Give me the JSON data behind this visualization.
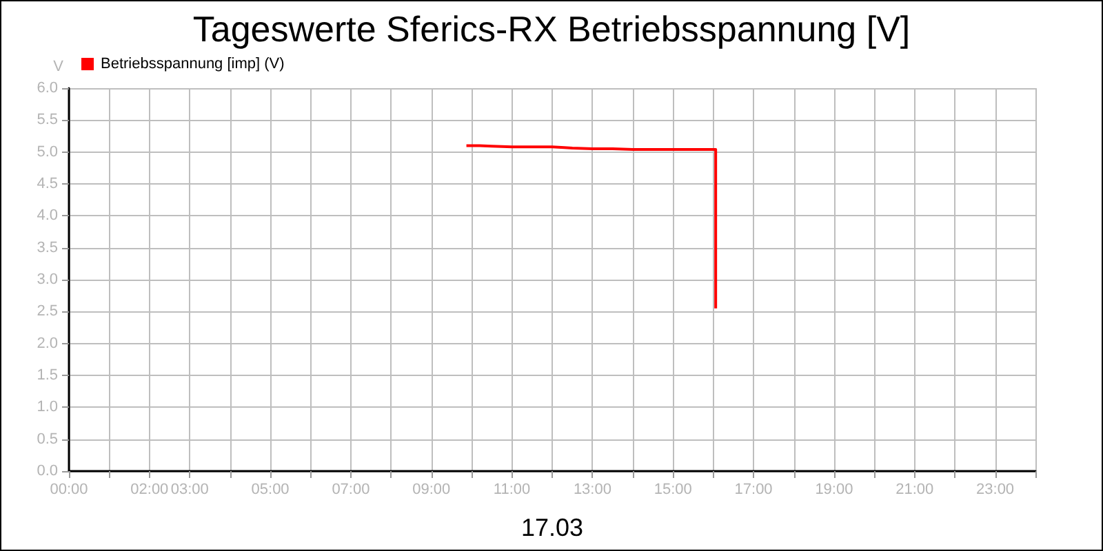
{
  "chart_data": {
    "type": "line",
    "title": "Tageswerte Sferics-RX Betriebsspannung [V]",
    "ylabel": "V",
    "xlabel": "17.03",
    "x": [
      9.87,
      10.2,
      10.5,
      11.0,
      11.5,
      12.0,
      12.3,
      12.5,
      13.0,
      13.5,
      14.0,
      14.5,
      15.0,
      15.5,
      16.0,
      16.06,
      16.06
    ],
    "series": [
      {
        "name": "Betriebsspannung [imp] (V)",
        "color": "#ff0000",
        "values": [
          5.1,
          5.1,
          5.09,
          5.08,
          5.08,
          5.08,
          5.07,
          5.06,
          5.05,
          5.05,
          5.04,
          5.04,
          5.04,
          5.04,
          5.04,
          5.04,
          2.55
        ]
      }
    ],
    "xlim": [
      0,
      24
    ],
    "xticks": [
      {
        "value": 0,
        "label": "00:00"
      },
      {
        "value": 1,
        "label": null
      },
      {
        "value": 2,
        "label": "02:00"
      },
      {
        "value": 3,
        "label": "03:00"
      },
      {
        "value": 4,
        "label": null
      },
      {
        "value": 5,
        "label": "05:00"
      },
      {
        "value": 6,
        "label": null
      },
      {
        "value": 7,
        "label": "07:00"
      },
      {
        "value": 8,
        "label": null
      },
      {
        "value": 9,
        "label": "09:00"
      },
      {
        "value": 10,
        "label": null
      },
      {
        "value": 11,
        "label": "11:00"
      },
      {
        "value": 12,
        "label": null
      },
      {
        "value": 13,
        "label": "13:00"
      },
      {
        "value": 14,
        "label": null
      },
      {
        "value": 15,
        "label": "15:00"
      },
      {
        "value": 16,
        "label": null
      },
      {
        "value": 17,
        "label": "17:00"
      },
      {
        "value": 18,
        "label": null
      },
      {
        "value": 19,
        "label": "19:00"
      },
      {
        "value": 20,
        "label": null
      },
      {
        "value": 21,
        "label": "21:00"
      },
      {
        "value": 22,
        "label": null
      },
      {
        "value": 23,
        "label": "23:00"
      },
      {
        "value": 24,
        "label": null
      }
    ],
    "ylim": [
      0,
      6
    ],
    "yticks": [
      {
        "value": 0,
        "label": "0.0"
      },
      {
        "value": 0.5,
        "label": "0.5"
      },
      {
        "value": 1,
        "label": "1.0"
      },
      {
        "value": 1.5,
        "label": "1.5"
      },
      {
        "value": 2,
        "label": "2.0"
      },
      {
        "value": 2.5,
        "label": "2.5"
      },
      {
        "value": 3,
        "label": "3.0"
      },
      {
        "value": 3.5,
        "label": "3.5"
      },
      {
        "value": 4,
        "label": "4.0"
      },
      {
        "value": 4.5,
        "label": "4.5"
      },
      {
        "value": 5,
        "label": "5.0"
      },
      {
        "value": 5.5,
        "label": "5.5"
      },
      {
        "value": 6,
        "label": "6.0"
      }
    ],
    "grid": true,
    "legend": "top left",
    "marker": "none",
    "line_style": "solid"
  }
}
